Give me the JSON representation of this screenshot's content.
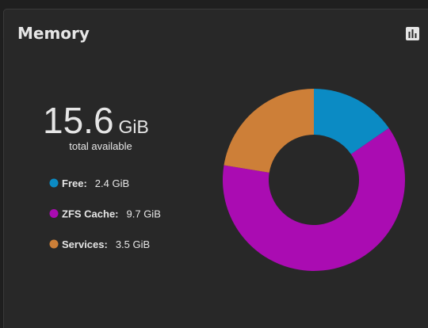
{
  "widget": {
    "title": "Memory",
    "total": 15.6,
    "unit": "GiB",
    "caption": "total available"
  },
  "chart_data": {
    "type": "doughnut",
    "categories": [
      "Free:",
      "ZFS Cache:",
      "Services:"
    ],
    "values": [
      2.4,
      9.7,
      3.5
    ],
    "value_labels": [
      "2.4 GiB",
      "9.7 GiB",
      "3.5 GiB"
    ],
    "colors": [
      "#0b8bc4",
      "#aa0cb2",
      "#cd7f38"
    ]
  }
}
